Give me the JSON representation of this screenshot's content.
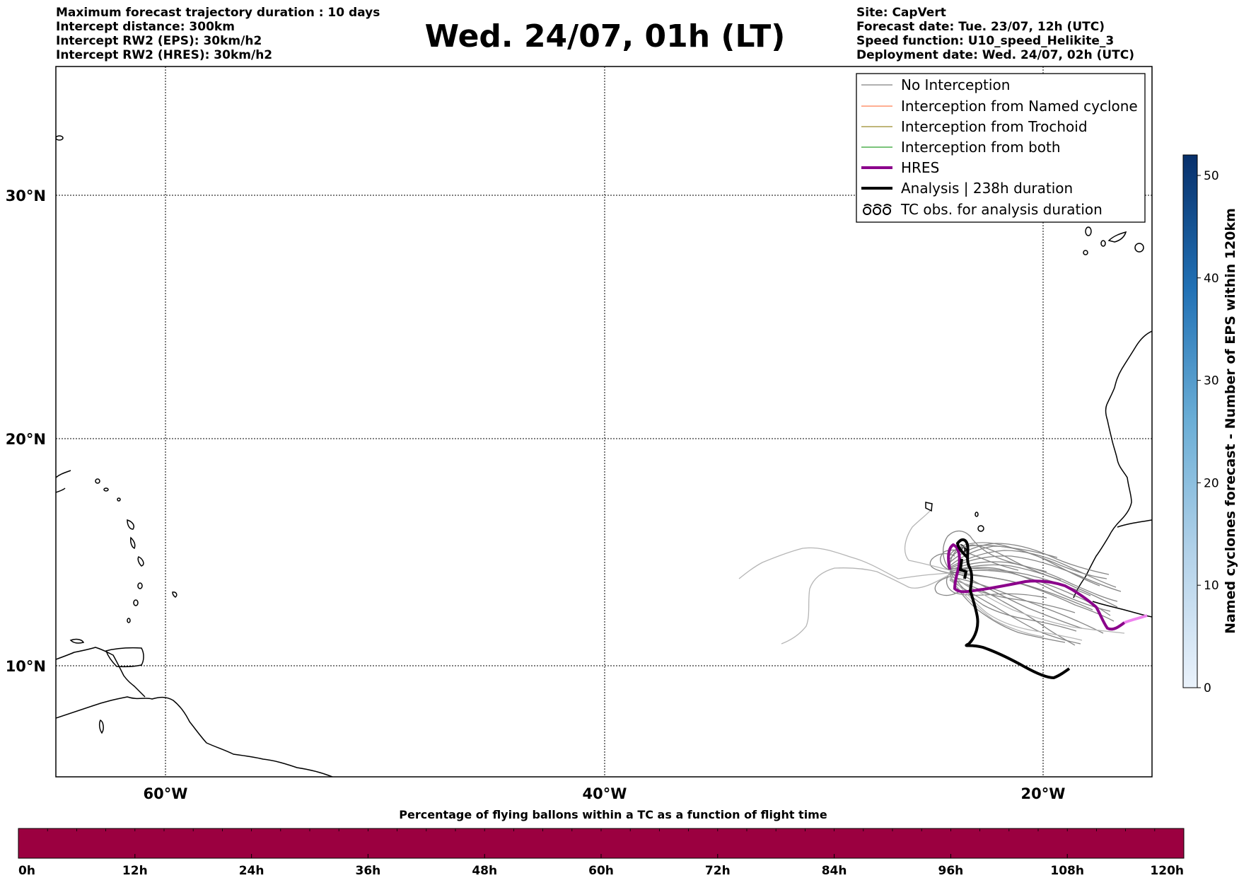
{
  "header_left": [
    "Maximum forecast trajectory duration : 10 days",
    "Intercept distance: 300km",
    "Intercept RW2 (EPS):  30km/h2",
    "Intercept RW2 (HRES): 30km/h2"
  ],
  "header_right": [
    "Site: CapVert",
    "Forecast date: Tue. 23/07, 12h (UTC)",
    "Speed function: U10_speed_Helikite_3",
    "Deployment date: Wed. 24/07, 02h (UTC)"
  ],
  "title": "Wed. 24/07, 01h (LT)",
  "map": {
    "lat_labels": [
      "30°N",
      "20°N",
      "10°N"
    ],
    "lon_labels": [
      "60°W",
      "40°W",
      "20°W"
    ],
    "grid": "dotted",
    "extent": {
      "lon": [
        -65,
        -15
      ],
      "lat": [
        5.4,
        34.6
      ]
    }
  },
  "legend": {
    "placement": "top-right",
    "items": [
      {
        "label": "No Interception",
        "color": "#808080",
        "style": "thin-line"
      },
      {
        "label": "Interception from Named cyclone",
        "color": "#ff7f50",
        "style": "thin-line"
      },
      {
        "label": "Interception from Trochoid",
        "color": "#9a8a2a",
        "style": "thin-line"
      },
      {
        "label": "Interception from both",
        "color": "#2ca02c",
        "style": "thin-line"
      },
      {
        "label": "HRES",
        "color": "#8b008b",
        "style": "thick-line"
      },
      {
        "label": "Analysis | 238h duration",
        "color": "#000000",
        "style": "thick-line"
      },
      {
        "label": "TC obs. for analysis duration",
        "color": "#000000",
        "style": "tc-symbol"
      }
    ]
  },
  "colorbar_right": {
    "label": "Named cyclones forecast - Number of EPS within 120km",
    "ticks": [
      "0",
      "10",
      "20",
      "30",
      "40",
      "50"
    ],
    "range": [
      0,
      52
    ],
    "colors": [
      "#eaf2fb",
      "#08306b"
    ]
  },
  "colorbar_bottom": {
    "title": "Percentage of flying ballons within a TC as a function of flight time",
    "ticks": [
      "0h",
      "12h",
      "24h",
      "36h",
      "48h",
      "60h",
      "72h",
      "84h",
      "96h",
      "108h",
      "120h"
    ],
    "fill_color": "#9b0040",
    "fill_fraction": 1.0
  },
  "colors": {
    "hres": "#8b008b",
    "hres_tail": "#ee82ee",
    "analysis": "#000000",
    "ensemble": "#707070"
  }
}
